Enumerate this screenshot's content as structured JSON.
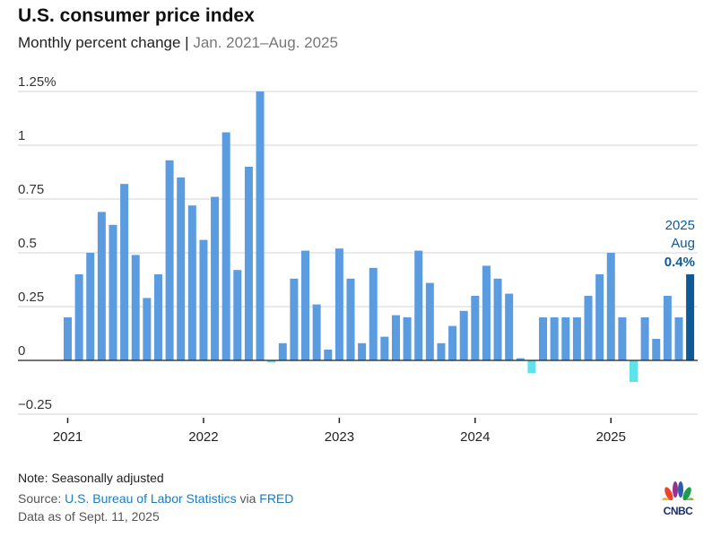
{
  "title": "U.S. consumer price index",
  "subtitle": "Monthly percent change",
  "subtitle_range": "Jan. 2021–Aug. 2025",
  "note": "Note: Seasonally adjusted",
  "source_prefix": "Source: ",
  "source_link1": "U.S. Bureau of Labor Statistics",
  "source_via": " via ",
  "source_link2": "FRED",
  "data_as_of": "Data as of Sept. 11, 2025",
  "logo_text": "CNBC",
  "colors": {
    "bar": "#5b9be0",
    "negative": "#5fe3ea",
    "highlight": "#0f5a96",
    "grid": "#d6d6d6"
  },
  "chart_data": {
    "type": "bar",
    "title": "U.S. consumer price index",
    "ylabel": "Monthly percent change",
    "ylim": [
      -0.25,
      1.25
    ],
    "yticks": [
      -0.25,
      0,
      0.25,
      0.5,
      0.75,
      1,
      1.25
    ],
    "ytick_labels": [
      "−0.25",
      "0",
      "0.25",
      "0.5",
      "0.75",
      "1",
      "1.25%"
    ],
    "xtick_labels": [
      "2021",
      "2022",
      "2023",
      "2024",
      "2025"
    ],
    "start": "2021-01",
    "values": [
      0.2,
      0.4,
      0.5,
      0.69,
      0.63,
      0.82,
      0.49,
      0.29,
      0.4,
      0.93,
      0.85,
      0.72,
      0.56,
      0.76,
      1.06,
      0.42,
      0.9,
      1.25,
      -0.01,
      0.08,
      0.38,
      0.51,
      0.26,
      0.05,
      0.52,
      0.38,
      0.08,
      0.43,
      0.11,
      0.21,
      0.2,
      0.51,
      0.36,
      0.08,
      0.16,
      0.23,
      0.3,
      0.44,
      0.38,
      0.31,
      0.01,
      -0.06,
      0.2,
      0.2,
      0.2,
      0.2,
      0.3,
      0.4,
      0.5,
      0.2,
      -0.1,
      0.2,
      0.1,
      0.3,
      0.2,
      0.4
    ],
    "annotation": {
      "year": "2025",
      "month": "Aug",
      "value": "0.4%"
    },
    "grid": true
  }
}
